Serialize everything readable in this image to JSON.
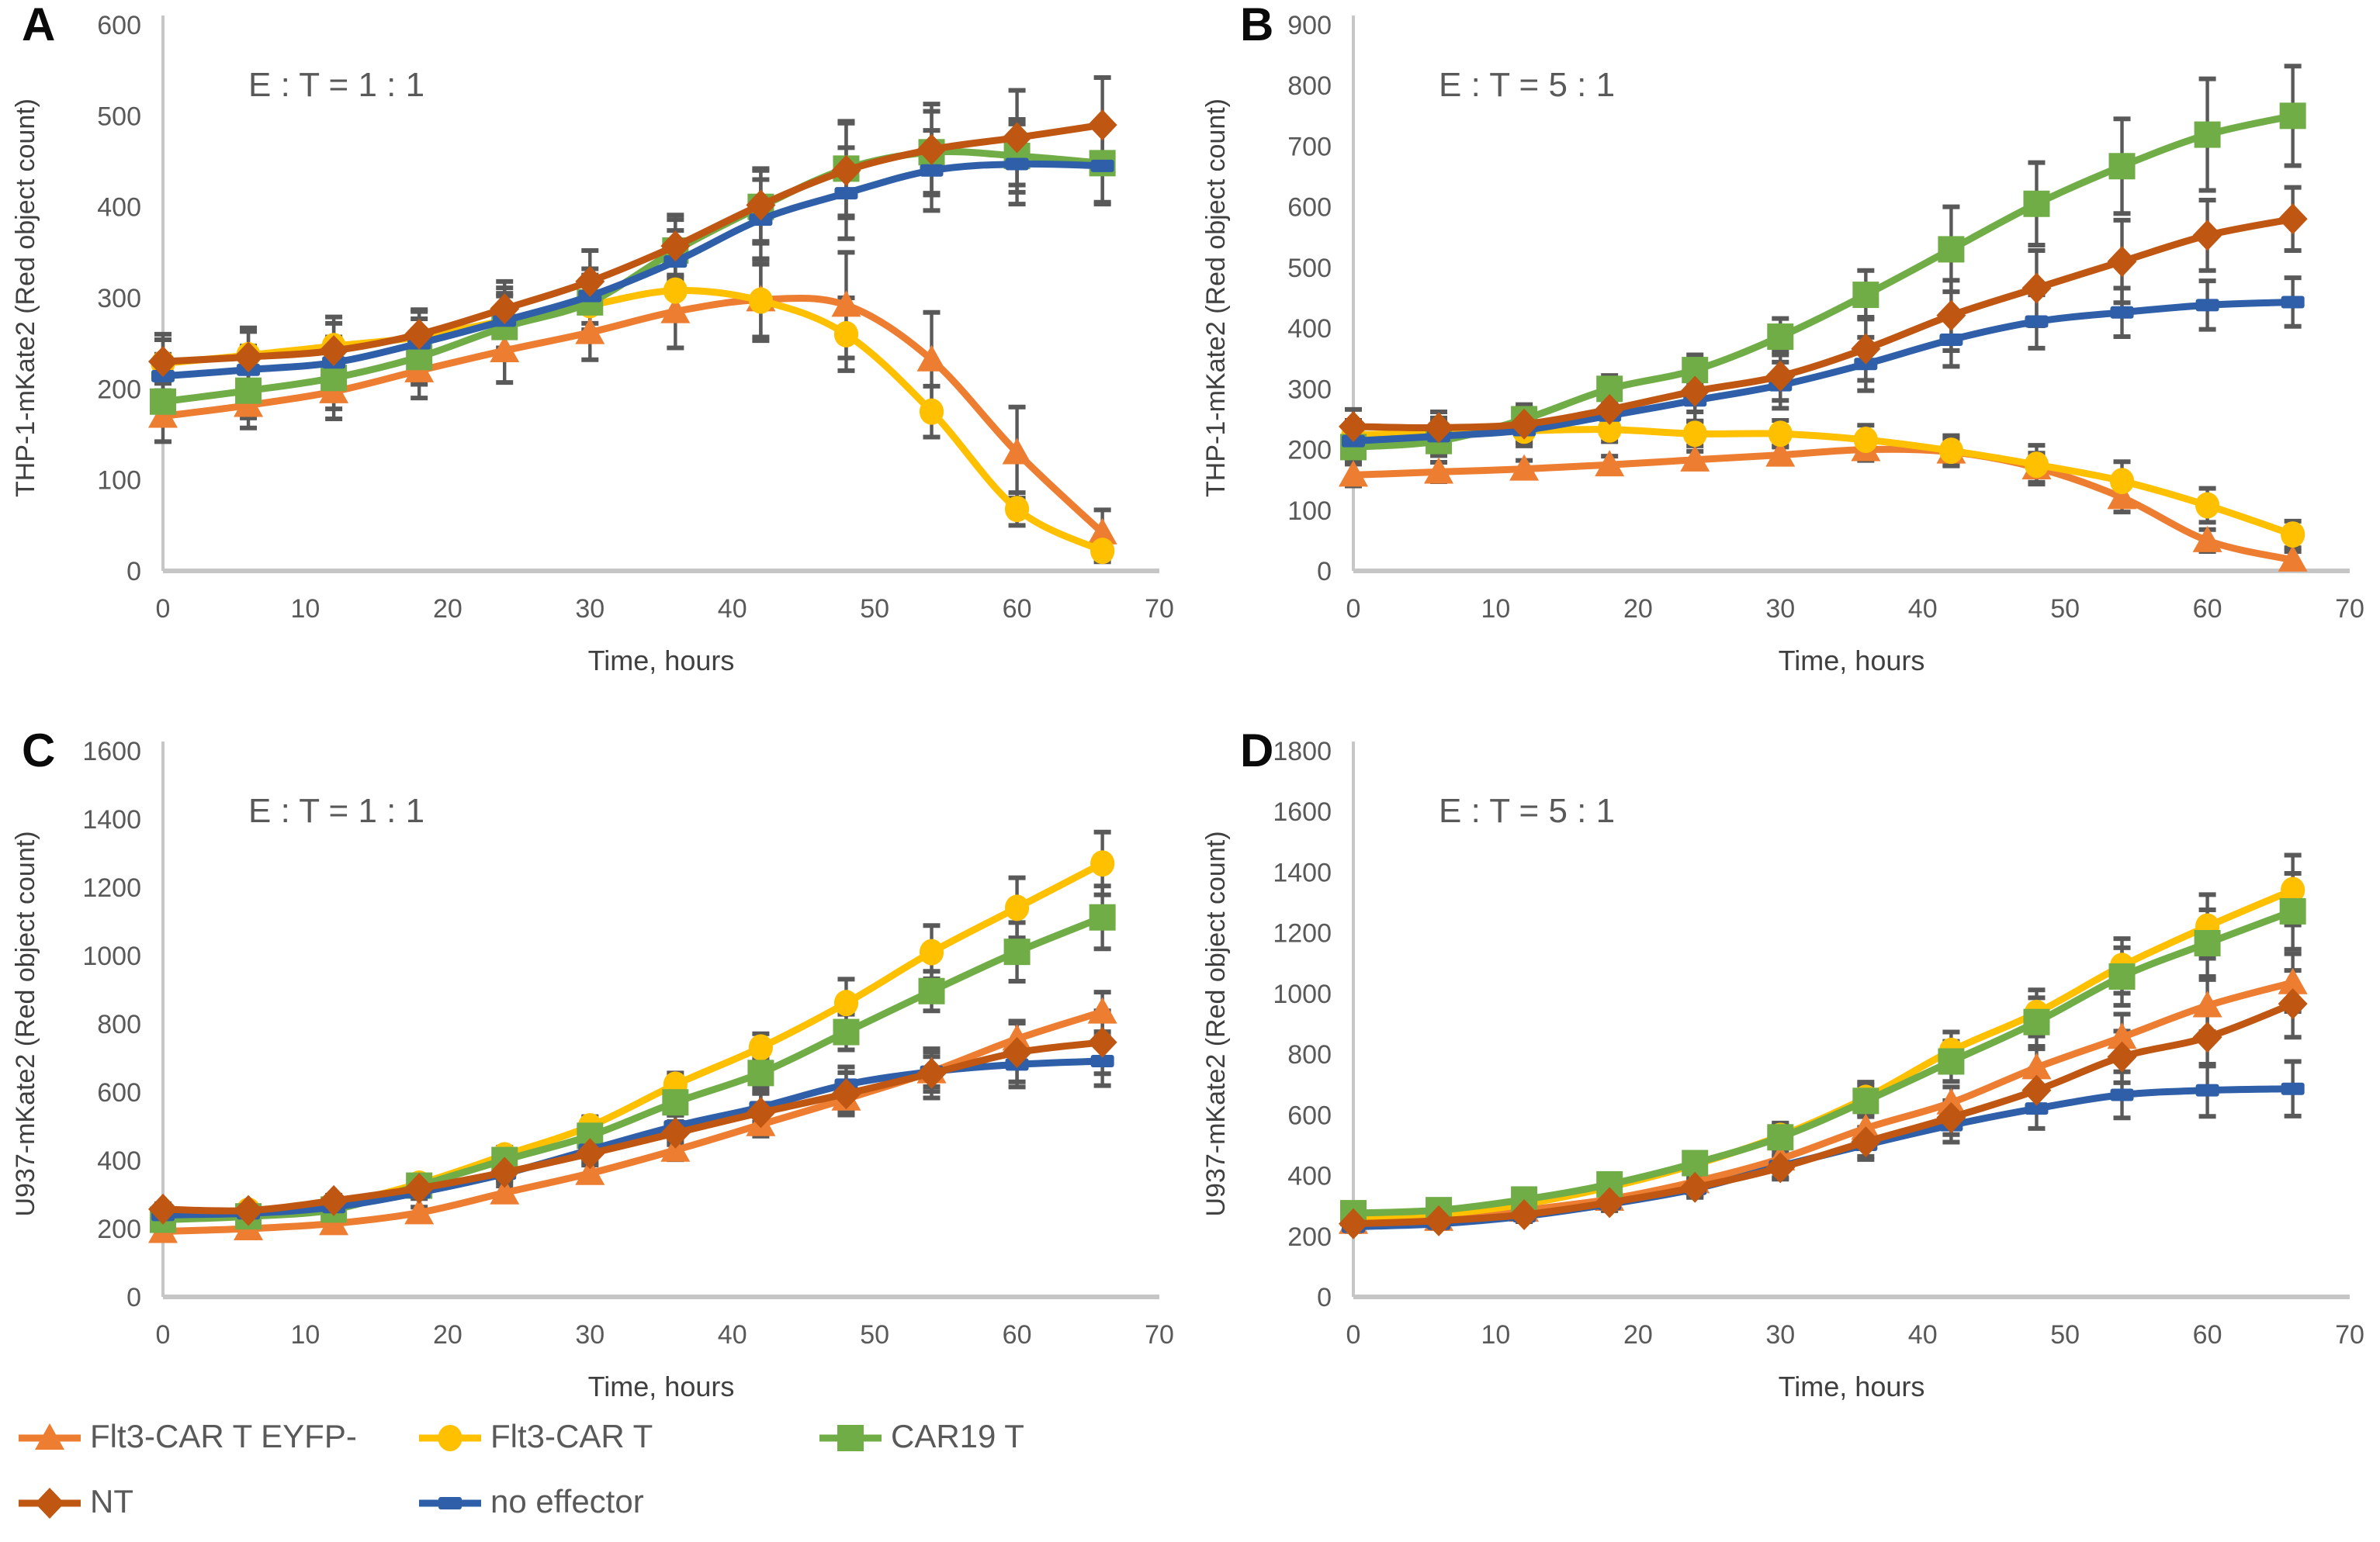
{
  "colors": {
    "flt3_car_t_eyfp": "#ED7D31",
    "flt3_car_t": "#FFC000",
    "car19_t": "#70AD47",
    "nt": "#BF5712",
    "no_effector": "#2E5FA8",
    "error_bar": "#595959",
    "axis_line": "#C6C6C6",
    "tick_text": "#595959",
    "label_text": "#404040",
    "title_text": "#595959"
  },
  "legend": {
    "items": [
      {
        "label": "Flt3-CAR T EYFP-",
        "marker": "triangle",
        "color": "#ED7D31"
      },
      {
        "label": "Flt3-CAR T",
        "marker": "circle",
        "color": "#FFC000"
      },
      {
        "label": "CAR19 T",
        "marker": "square",
        "color": "#70AD47"
      },
      {
        "label": "NT",
        "marker": "diamond",
        "color": "#BF5712"
      },
      {
        "label": "no effector",
        "marker": "dash",
        "color": "#2E5FA8"
      }
    ]
  },
  "chart_data": [
    {
      "letter": "A",
      "type": "line",
      "title": "E : T = 1 : 1",
      "ylabel": "THP-1-mKate2 (Red object count)",
      "xlabel": "Time, hours",
      "ylim": [
        0,
        600
      ],
      "ytick_step": 100,
      "xlim": [
        0,
        70
      ],
      "xticks": [
        0,
        10,
        20,
        30,
        40,
        50,
        60,
        70
      ],
      "x": [
        0,
        6,
        12,
        18,
        24,
        30,
        36,
        42,
        48,
        54,
        60,
        66
      ],
      "zorder": [
        0,
        1,
        2,
        4,
        3
      ],
      "series": [
        {
          "name": "Flt3-CAR T EYFP-",
          "marker": "triangle",
          "color": "#ED7D31",
          "values": [
            170,
            182,
            197,
            220,
            242,
            262,
            285,
            298,
            292,
            232,
            130,
            42
          ],
          "err": [
            28,
            25,
            30,
            30,
            35,
            30,
            40,
            45,
            58,
            52,
            50,
            25
          ]
        },
        {
          "name": "Flt3-CAR T",
          "marker": "circle",
          "color": "#FFC000",
          "values": [
            228,
            237,
            247,
            257,
            275,
            292,
            308,
            297,
            260,
            175,
            68,
            22
          ],
          "err": [
            32,
            30,
            32,
            30,
            36,
            32,
            28,
            40,
            40,
            28,
            18,
            12
          ]
        },
        {
          "name": "CAR19 T",
          "marker": "square",
          "color": "#70AD47",
          "values": [
            186,
            198,
            212,
            235,
            268,
            295,
            352,
            400,
            442,
            460,
            456,
            448
          ],
          "err": [
            26,
            30,
            34,
            30,
            34,
            30,
            34,
            40,
            52,
            45,
            40,
            45
          ]
        },
        {
          "name": "NT",
          "marker": "diamond",
          "color": "#BF5712",
          "values": [
            230,
            235,
            242,
            260,
            288,
            318,
            357,
            402,
            440,
            463,
            476,
            490
          ],
          "err": [
            24,
            28,
            30,
            25,
            30,
            34,
            34,
            40,
            52,
            50,
            52,
            52
          ]
        },
        {
          "name": "no effector",
          "marker": "dash",
          "color": "#2E5FA8",
          "values": [
            214,
            221,
            229,
            250,
            275,
            302,
            340,
            386,
            415,
            440,
            447,
            445
          ],
          "err": [
            24,
            26,
            28,
            27,
            30,
            30,
            34,
            44,
            50,
            44,
            44,
            40
          ]
        }
      ]
    },
    {
      "letter": "B",
      "type": "line",
      "title": "E : T = 5 : 1",
      "ylabel": "THP-1-mKate2 (Red object count)",
      "xlabel": "Time, hours",
      "ylim": [
        0,
        900
      ],
      "ytick_step": 100,
      "xlim": [
        0,
        70
      ],
      "xticks": [
        0,
        10,
        20,
        30,
        40,
        50,
        60,
        70
      ],
      "x": [
        0,
        6,
        12,
        18,
        24,
        30,
        36,
        42,
        48,
        54,
        60,
        66
      ],
      "zorder": [
        0,
        1,
        2,
        4,
        3
      ],
      "series": [
        {
          "name": "Flt3-CAR T EYFP-",
          "marker": "triangle",
          "color": "#ED7D31",
          "values": [
            158,
            163,
            168,
            175,
            183,
            191,
            200,
            196,
            170,
            121,
            50,
            18
          ],
          "err": [
            18,
            16,
            14,
            14,
            14,
            15,
            18,
            22,
            24,
            24,
            18,
            14
          ]
        },
        {
          "name": "Flt3-CAR T",
          "marker": "circle",
          "color": "#FFC000",
          "values": [
            224,
            228,
            231,
            233,
            226,
            226,
            216,
            198,
            175,
            148,
            108,
            60
          ],
          "err": [
            24,
            24,
            20,
            20,
            20,
            22,
            24,
            25,
            32,
            32,
            28,
            22
          ]
        },
        {
          "name": "CAR19 T",
          "marker": "square",
          "color": "#70AD47",
          "values": [
            204,
            214,
            250,
            300,
            331,
            386,
            455,
            530,
            605,
            667,
            719,
            750
          ],
          "err": [
            24,
            24,
            24,
            22,
            25,
            30,
            40,
            70,
            68,
            78,
            92,
            82
          ]
        },
        {
          "name": "NT",
          "marker": "diamond",
          "color": "#BF5712",
          "values": [
            238,
            236,
            242,
            266,
            296,
            321,
            366,
            421,
            466,
            510,
            553,
            580
          ],
          "err": [
            28,
            26,
            28,
            28,
            34,
            40,
            52,
            58,
            62,
            68,
            58,
            52
          ]
        },
        {
          "name": "no effector",
          "marker": "dash",
          "color": "#2E5FA8",
          "values": [
            214,
            222,
            232,
            256,
            281,
            306,
            341,
            381,
            411,
            426,
            438,
            443
          ],
          "err": [
            24,
            24,
            26,
            30,
            34,
            38,
            44,
            44,
            44,
            40,
            40,
            40
          ]
        }
      ]
    },
    {
      "letter": "C",
      "type": "line",
      "title": "E : T = 1 : 1",
      "ylabel": "U937-mKate2 (Red object count)",
      "xlabel": "Time, hours",
      "ylim": [
        0,
        1600
      ],
      "ytick_step": 200,
      "xlim": [
        0,
        70
      ],
      "xticks": [
        0,
        10,
        20,
        30,
        40,
        50,
        60,
        70
      ],
      "x": [
        0,
        6,
        12,
        18,
        24,
        30,
        36,
        42,
        48,
        54,
        60,
        66
      ],
      "zorder": [
        0,
        1,
        2,
        4,
        3
      ],
      "series": [
        {
          "name": "Flt3-CAR T EYFP-",
          "marker": "triangle",
          "color": "#ED7D31",
          "values": [
            192,
            200,
            215,
            247,
            305,
            362,
            430,
            505,
            580,
            660,
            756,
            835
          ],
          "err": [
            14,
            14,
            14,
            16,
            20,
            24,
            28,
            34,
            40,
            44,
            52,
            58
          ]
        },
        {
          "name": "Flt3-CAR T",
          "marker": "circle",
          "color": "#FFC000",
          "values": [
            248,
            253,
            272,
            332,
            415,
            500,
            622,
            731,
            861,
            1010,
            1140,
            1270
          ],
          "err": [
            14,
            14,
            16,
            20,
            24,
            28,
            34,
            40,
            70,
            78,
            88,
            92
          ]
        },
        {
          "name": "CAR19 T",
          "marker": "square",
          "color": "#70AD47",
          "values": [
            226,
            236,
            256,
            326,
            401,
            472,
            570,
            656,
            776,
            896,
            1011,
            1112
          ],
          "err": [
            14,
            14,
            16,
            20,
            26,
            32,
            38,
            44,
            52,
            58,
            86,
            92
          ]
        },
        {
          "name": "NT",
          "marker": "diamond",
          "color": "#BF5712",
          "values": [
            257,
            253,
            282,
            318,
            365,
            420,
            480,
            540,
            595,
            655,
            716,
            746
          ],
          "err": [
            16,
            14,
            16,
            18,
            24,
            28,
            34,
            56,
            62,
            72,
            86,
            92
          ]
        },
        {
          "name": "no effector",
          "marker": "dash",
          "color": "#2E5FA8",
          "values": [
            240,
            245,
            263,
            306,
            361,
            431,
            500,
            556,
            622,
            660,
            681,
            691
          ],
          "err": [
            14,
            14,
            16,
            18,
            24,
            28,
            34,
            44,
            52,
            58,
            66,
            72
          ]
        }
      ]
    },
    {
      "letter": "D",
      "type": "line",
      "title": "E : T = 5 : 1",
      "ylabel": "U937-mKate2 (Red object count)",
      "xlabel": "Time, hours",
      "ylim": [
        0,
        1800
      ],
      "ytick_step": 200,
      "xlim": [
        0,
        70
      ],
      "xticks": [
        0,
        10,
        20,
        30,
        40,
        50,
        60,
        70
      ],
      "x": [
        0,
        6,
        12,
        18,
        24,
        30,
        36,
        42,
        48,
        54,
        60,
        66
      ],
      "zorder": [
        0,
        1,
        2,
        4,
        3
      ],
      "series": [
        {
          "name": "Flt3-CAR T EYFP-",
          "marker": "triangle",
          "color": "#ED7D31",
          "values": [
            246,
            256,
            286,
            322,
            380,
            455,
            556,
            640,
            756,
            856,
            960,
            1036
          ],
          "err": [
            18,
            18,
            20,
            24,
            28,
            34,
            44,
            52,
            62,
            76,
            86,
            95
          ]
        },
        {
          "name": "Flt3-CAR T",
          "marker": "circle",
          "color": "#FFC000",
          "values": [
            262,
            272,
            306,
            362,
            436,
            531,
            656,
            811,
            936,
            1091,
            1221,
            1341
          ],
          "err": [
            18,
            18,
            22,
            28,
            34,
            42,
            52,
            62,
            76,
            90,
            105,
            115
          ]
        },
        {
          "name": "CAR19 T",
          "marker": "square",
          "color": "#70AD47",
          "values": [
            276,
            286,
            321,
            371,
            441,
            526,
            646,
            776,
            906,
            1056,
            1166,
            1271
          ],
          "err": [
            18,
            18,
            22,
            28,
            34,
            42,
            52,
            66,
            80,
            95,
            110,
            125
          ]
        },
        {
          "name": "NT",
          "marker": "diamond",
          "color": "#BF5712",
          "values": [
            241,
            251,
            271,
            311,
            361,
            426,
            511,
            591,
            681,
            791,
            856,
            966
          ],
          "err": [
            18,
            18,
            20,
            24,
            28,
            38,
            48,
            56,
            70,
            85,
            95,
            110
          ]
        },
        {
          "name": "no effector",
          "marker": "dash",
          "color": "#2E5FA8",
          "values": [
            231,
            241,
            266,
            306,
            356,
            431,
            501,
            566,
            621,
            666,
            681,
            686
          ],
          "err": [
            16,
            16,
            18,
            22,
            28,
            38,
            48,
            56,
            66,
            76,
            86,
            90
          ]
        }
      ]
    }
  ]
}
